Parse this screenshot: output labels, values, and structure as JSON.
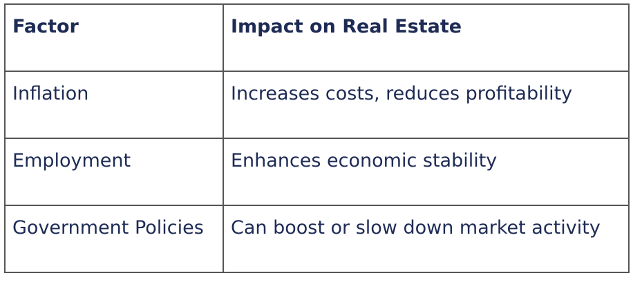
{
  "table": {
    "header": [
      "Factor",
      "Impact on Real Estate"
    ],
    "rows": [
      [
        "Inflation",
        "Increases costs, reduces profitability"
      ],
      [
        "Employment",
        "Enhances economic stability"
      ],
      [
        "Government Policies",
        "Can boost or slow down market activity"
      ]
    ]
  }
}
